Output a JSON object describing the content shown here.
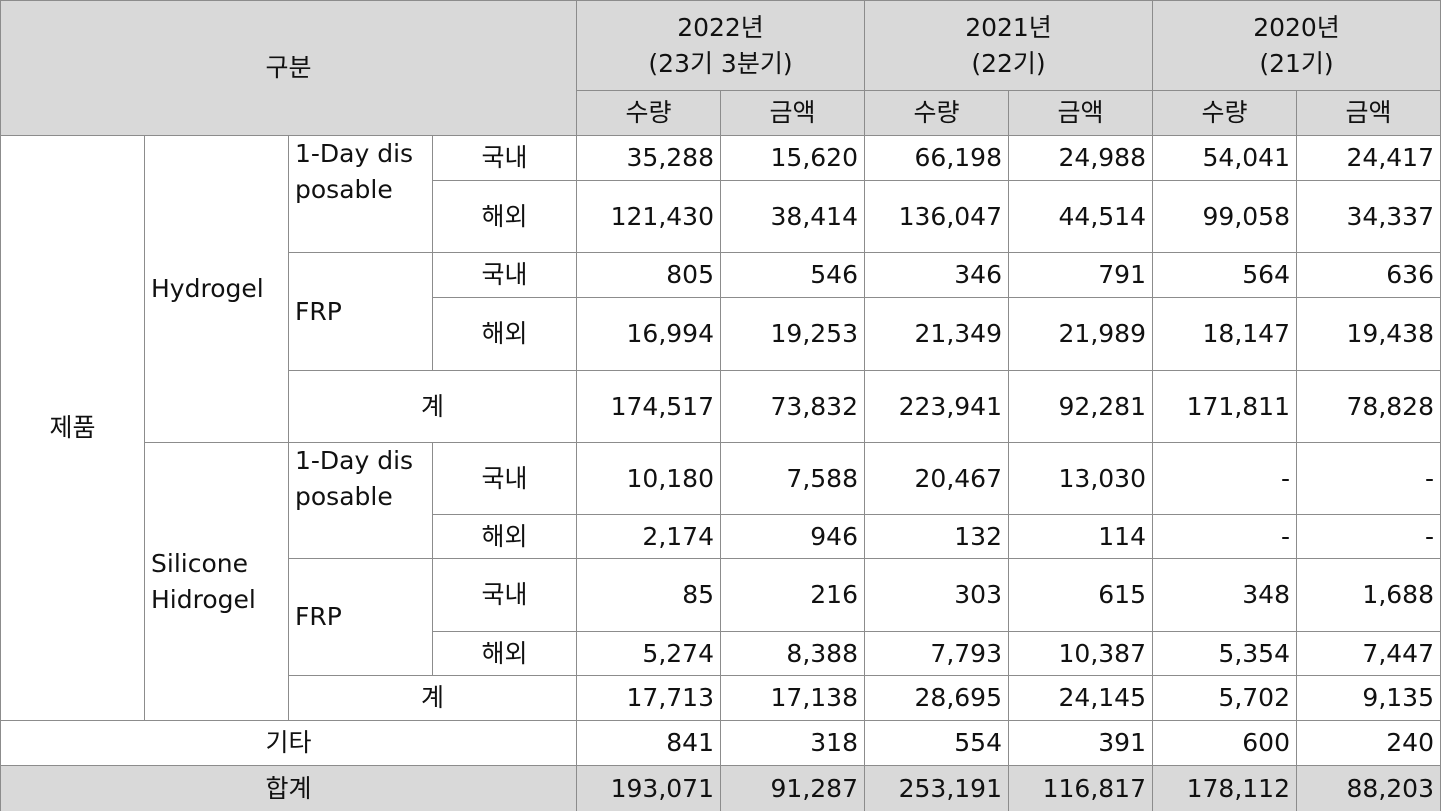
{
  "header": {
    "category": "구분",
    "periods": [
      {
        "year": "2022년",
        "term": "(23기 3분기)",
        "columns": [
          "수량",
          "금액"
        ]
      },
      {
        "year": "2021년",
        "term": "(22기)",
        "columns": [
          "수량",
          "금액"
        ]
      },
      {
        "year": "2020년",
        "term": "(21기)",
        "columns": [
          "수량",
          "금액"
        ]
      }
    ]
  },
  "groups": [
    {
      "name": "제품",
      "subgroups": [
        {
          "name": "Hydrogel",
          "products": [
            {
              "name": "1-Day disposable",
              "rows": [
                {
                  "region": "국내",
                  "values": [
                    "35,288",
                    "15,620",
                    "66,198",
                    "24,988",
                    "54,041",
                    "24,417"
                  ]
                },
                {
                  "region": "해외",
                  "values": [
                    "121,430",
                    "38,414",
                    "136,047",
                    "44,514",
                    "99,058",
                    "34,337"
                  ]
                }
              ]
            },
            {
              "name": "FRP",
              "rows": [
                {
                  "region": "국내",
                  "values": [
                    "805",
                    "546",
                    "346",
                    "791",
                    "564",
                    "636"
                  ]
                },
                {
                  "region": "해외",
                  "values": [
                    "16,994",
                    "19,253",
                    "21,349",
                    "21,989",
                    "18,147",
                    "19,438"
                  ]
                }
              ]
            }
          ],
          "total": {
            "label": "계",
            "values": [
              "174,517",
              "73,832",
              "223,941",
              "92,281",
              "171,811",
              "78,828"
            ]
          }
        },
        {
          "name": "Silicone Hidrogel",
          "products": [
            {
              "name": "1-Day disposable",
              "rows": [
                {
                  "region": "국내",
                  "values": [
                    "10,180",
                    "7,588",
                    "20,467",
                    "13,030",
                    "-",
                    "-"
                  ]
                },
                {
                  "region": "해외",
                  "values": [
                    "2,174",
                    "946",
                    "132",
                    "114",
                    "-",
                    "-"
                  ]
                }
              ]
            },
            {
              "name": "FRP",
              "rows": [
                {
                  "region": "국내",
                  "values": [
                    "85",
                    "216",
                    "303",
                    "615",
                    "348",
                    "1,688"
                  ]
                },
                {
                  "region": "해외",
                  "values": [
                    "5,274",
                    "8,388",
                    "7,793",
                    "10,387",
                    "5,354",
                    "7,447"
                  ]
                }
              ]
            }
          ],
          "total": {
            "label": "계",
            "values": [
              "17,713",
              "17,138",
              "28,695",
              "24,145",
              "5,702",
              "9,135"
            ]
          }
        }
      ]
    }
  ],
  "other": {
    "label": "기타",
    "values": [
      "841",
      "318",
      "554",
      "391",
      "600",
      "240"
    ]
  },
  "grand_total": {
    "label": "합계",
    "values": [
      "193,071",
      "91,287",
      "253,191",
      "116,817",
      "178,112",
      "88,203"
    ]
  }
}
